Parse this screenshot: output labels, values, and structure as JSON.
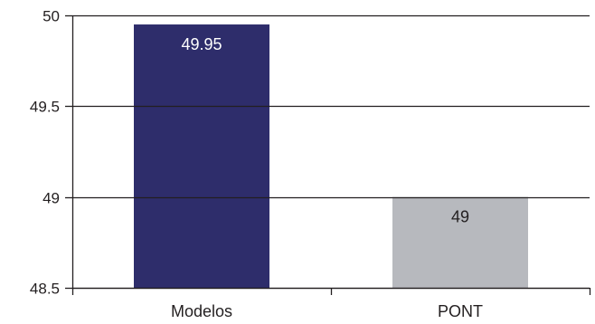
{
  "chart_data": {
    "type": "bar",
    "title": "",
    "xlabel": "",
    "ylabel": "",
    "categories": [
      "Modelos",
      "PONT"
    ],
    "values": [
      49.95,
      49
    ],
    "data_labels": [
      "49.95",
      "49"
    ],
    "bar_colors": [
      "#2e2d6b",
      "#b7b9be"
    ],
    "data_label_colors": [
      "#ffffff",
      "#231f20"
    ],
    "ylim": [
      48.5,
      50
    ],
    "yticks": [
      48.5,
      49,
      49.5,
      50
    ],
    "ytick_labels": [
      "48.5",
      "49",
      "49.5",
      "50"
    ],
    "grid": true,
    "gridline_color": "#231f20",
    "legend": false
  }
}
